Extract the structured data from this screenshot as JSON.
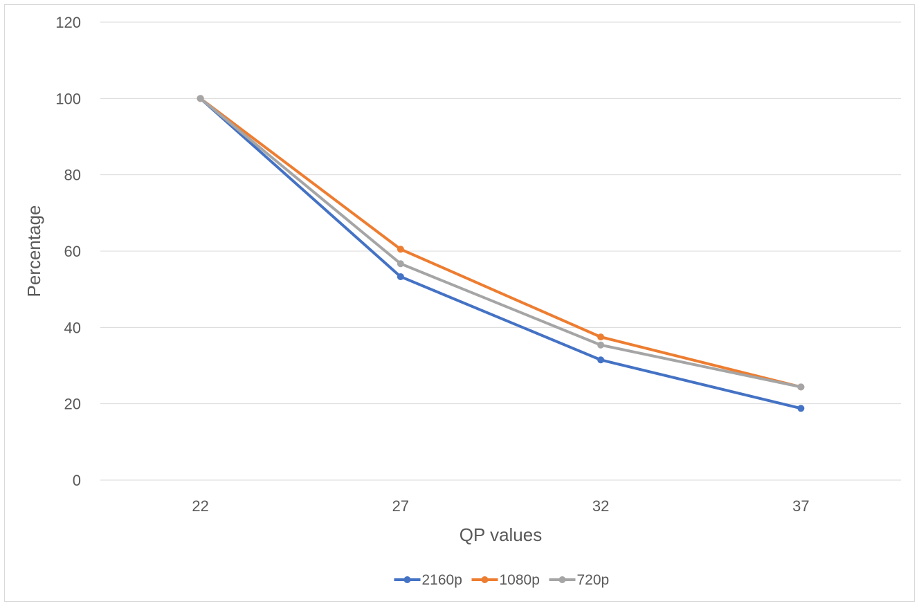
{
  "chart_data": {
    "type": "line",
    "title": "",
    "xlabel": "QP values",
    "ylabel": "Percentage",
    "categories": [
      "22",
      "27",
      "32",
      "37"
    ],
    "ylim": [
      0,
      120
    ],
    "yticks": [
      0,
      20,
      40,
      60,
      80,
      100,
      120
    ],
    "grid": true,
    "legend_position": "bottom",
    "series": [
      {
        "name": "2160p",
        "color": "#4472C4",
        "values": [
          100,
          53.3,
          31.5,
          18.8
        ]
      },
      {
        "name": "1080p",
        "color": "#ED7D31",
        "values": [
          100,
          60.5,
          37.5,
          24.4
        ]
      },
      {
        "name": "720p",
        "color": "#A5A5A5",
        "values": [
          100,
          56.7,
          35.4,
          24.4
        ]
      }
    ]
  }
}
